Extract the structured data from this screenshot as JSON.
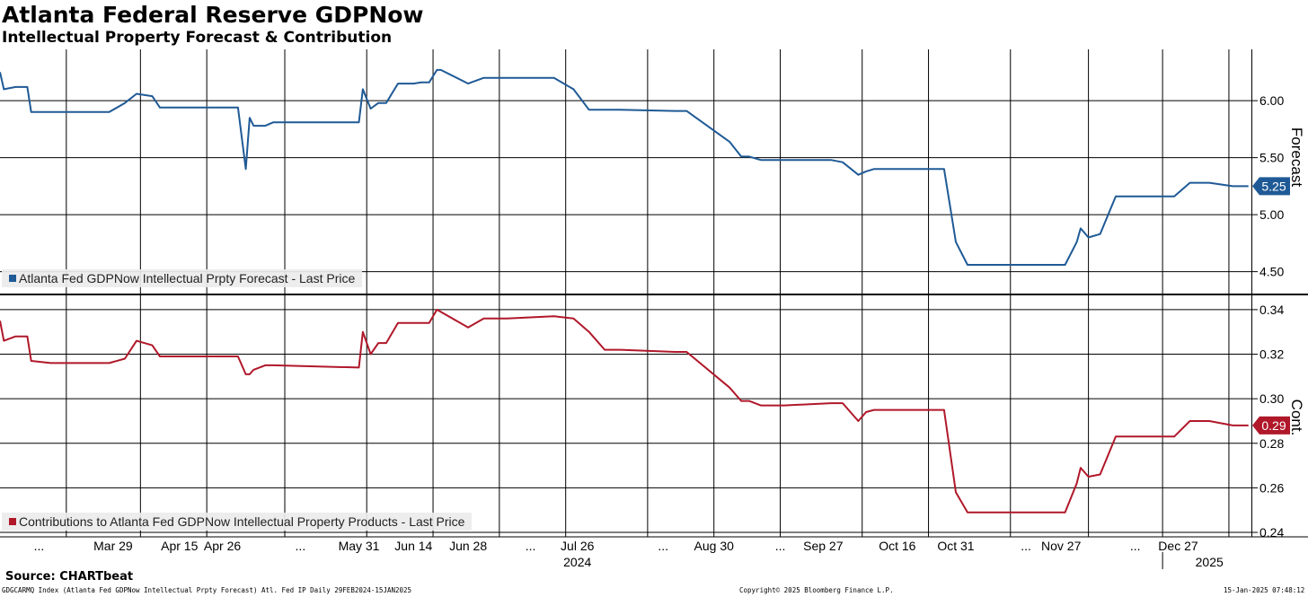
{
  "header": {
    "title": "Atlanta Federal Reserve GDPNow",
    "subtitle": "Intellectual Property Forecast & Contribution"
  },
  "footer": {
    "source": "Source: CHARTbeat",
    "ticker": "GDGCARMQ Index (Atlanta Fed GDPNow Intellectual Prpty Forecast) Atl. Fed IP  Daily 29FEB2024-15JAN2025",
    "copyright": "Copyright© 2025 Bloomberg Finance L.P.",
    "timestamp": "15-Jan-2025 07:48:12"
  },
  "colors": {
    "forecast": "#1f5a96",
    "contribution": "#b0182a",
    "grid": "#000000",
    "legend_bg": "#ebebeb"
  },
  "chart_data": [
    {
      "type": "line",
      "ylabel": "Forecast",
      "ylim": [
        4.3,
        6.45
      ],
      "yticks": [
        "4.50",
        "5.00",
        "5.50",
        "6.00"
      ],
      "ytick_values": [
        4.5,
        5.0,
        5.5,
        6.0
      ],
      "grid": true,
      "legend_position": "bottom-left",
      "last_value_label": "5.25",
      "series": [
        {
          "name": "Atlanta Fed GDPNow Intellectual Prpty Forecast - Last Price",
          "x": [
            "2024-02-29",
            "2024-03-01",
            "2024-03-04",
            "2024-03-07",
            "2024-03-08",
            "2024-03-13",
            "2024-03-28",
            "2024-04-01",
            "2024-04-04",
            "2024-04-08",
            "2024-04-10",
            "2024-04-30",
            "2024-05-02",
            "2024-05-03",
            "2024-05-04",
            "2024-05-07",
            "2024-05-09",
            "2024-05-31",
            "2024-06-01",
            "2024-06-03",
            "2024-06-05",
            "2024-06-07",
            "2024-06-10",
            "2024-06-11",
            "2024-06-14",
            "2024-06-16",
            "2024-06-18",
            "2024-06-20",
            "2024-06-21",
            "2024-06-28",
            "2024-07-02",
            "2024-07-06",
            "2024-07-08",
            "2024-07-20",
            "2024-07-25",
            "2024-07-29",
            "2024-08-02",
            "2024-08-06",
            "2024-08-20",
            "2024-08-23",
            "2024-09-03",
            "2024-09-06",
            "2024-09-08",
            "2024-09-11",
            "2024-09-17",
            "2024-09-29",
            "2024-10-02",
            "2024-10-06",
            "2024-10-08",
            "2024-10-10",
            "2024-10-14",
            "2024-10-28",
            "2024-10-31",
            "2024-11-03",
            "2024-11-13",
            "2024-11-19",
            "2024-11-28",
            "2024-12-01",
            "2024-12-02",
            "2024-12-04",
            "2024-12-07",
            "2024-12-11",
            "2024-12-14",
            "2024-12-26",
            "2024-12-30",
            "2025-01-04",
            "2025-01-10",
            "2025-01-14"
          ],
          "y": [
            6.25,
            6.1,
            6.12,
            6.12,
            5.9,
            5.9,
            5.9,
            5.98,
            6.06,
            6.04,
            5.94,
            5.94,
            5.4,
            5.85,
            5.78,
            5.78,
            5.81,
            5.81,
            6.1,
            5.93,
            5.98,
            5.98,
            6.15,
            6.15,
            6.15,
            6.16,
            6.16,
            6.27,
            6.27,
            6.15,
            6.2,
            6.2,
            6.2,
            6.2,
            6.1,
            5.92,
            5.92,
            5.92,
            5.91,
            5.91,
            5.64,
            5.51,
            5.51,
            5.48,
            5.48,
            5.48,
            5.46,
            5.35,
            5.38,
            5.4,
            5.4,
            5.4,
            4.76,
            4.56,
            4.56,
            4.56,
            4.56,
            4.76,
            4.88,
            4.8,
            4.83,
            5.16,
            5.16,
            5.16,
            5.28,
            5.28,
            5.25,
            5.25
          ]
        }
      ]
    },
    {
      "type": "line",
      "ylabel": "Cont.",
      "ylim": [
        0.238,
        0.346
      ],
      "yticks": [
        "0.24",
        "0.26",
        "0.28",
        "0.30",
        "0.32",
        "0.34"
      ],
      "ytick_values": [
        0.24,
        0.26,
        0.28,
        0.3,
        0.32,
        0.34
      ],
      "grid": true,
      "legend_position": "bottom-left",
      "last_value_label": "0.29",
      "series": [
        {
          "name": "Contributions to Atlanta Fed GDPNow Intellectual Property Products - Last Price",
          "x": [
            "2024-02-29",
            "2024-03-01",
            "2024-03-04",
            "2024-03-07",
            "2024-03-08",
            "2024-03-13",
            "2024-03-28",
            "2024-04-01",
            "2024-04-04",
            "2024-04-08",
            "2024-04-10",
            "2024-04-30",
            "2024-05-02",
            "2024-05-03",
            "2024-05-04",
            "2024-05-07",
            "2024-05-09",
            "2024-05-31",
            "2024-06-01",
            "2024-06-03",
            "2024-06-05",
            "2024-06-07",
            "2024-06-10",
            "2024-06-11",
            "2024-06-14",
            "2024-06-16",
            "2024-06-18",
            "2024-06-20",
            "2024-06-21",
            "2024-06-28",
            "2024-07-02",
            "2024-07-06",
            "2024-07-08",
            "2024-07-20",
            "2024-07-25",
            "2024-07-29",
            "2024-08-02",
            "2024-08-06",
            "2024-08-20",
            "2024-08-23",
            "2024-09-03",
            "2024-09-06",
            "2024-09-08",
            "2024-09-11",
            "2024-09-17",
            "2024-09-29",
            "2024-10-02",
            "2024-10-06",
            "2024-10-08",
            "2024-10-10",
            "2024-10-14",
            "2024-10-28",
            "2024-10-31",
            "2024-11-03",
            "2024-11-13",
            "2024-11-19",
            "2024-11-28",
            "2024-12-01",
            "2024-12-02",
            "2024-12-04",
            "2024-12-07",
            "2024-12-11",
            "2024-12-14",
            "2024-12-26",
            "2024-12-30",
            "2025-01-04",
            "2025-01-10",
            "2025-01-14"
          ],
          "y": [
            0.335,
            0.326,
            0.328,
            0.328,
            0.317,
            0.316,
            0.316,
            0.318,
            0.326,
            0.324,
            0.319,
            0.319,
            0.311,
            0.311,
            0.313,
            0.315,
            0.315,
            0.314,
            0.33,
            0.32,
            0.325,
            0.325,
            0.334,
            0.334,
            0.334,
            0.334,
            0.334,
            0.34,
            0.339,
            0.332,
            0.336,
            0.336,
            0.336,
            0.337,
            0.336,
            0.33,
            0.322,
            0.322,
            0.321,
            0.321,
            0.305,
            0.299,
            0.299,
            0.297,
            0.297,
            0.298,
            0.298,
            0.29,
            0.294,
            0.295,
            0.295,
            0.295,
            0.258,
            0.249,
            0.249,
            0.249,
            0.249,
            0.262,
            0.269,
            0.265,
            0.266,
            0.283,
            0.283,
            0.283,
            0.29,
            0.29,
            0.288,
            0.288
          ]
        }
      ]
    }
  ],
  "x_axis": {
    "start": "2024-02-29",
    "end": "2025-01-15",
    "gridlines": [
      "2024-03-17",
      "2024-04-05",
      "2024-04-22",
      "2024-05-12",
      "2024-06-02",
      "2024-06-19",
      "2024-07-06",
      "2024-07-23",
      "2024-08-13",
      "2024-08-30",
      "2024-09-16",
      "2024-10-07",
      "2024-10-24",
      "2024-11-14",
      "2024-12-04",
      "2024-12-23",
      "2025-01-09"
    ],
    "tick_labels": [
      {
        "date": "2024-03-10",
        "text": "..."
      },
      {
        "date": "2024-03-29",
        "text": "Mar 29"
      },
      {
        "date": "2024-04-15",
        "text": "Apr 15"
      },
      {
        "date": "2024-04-26",
        "text": "Apr 26"
      },
      {
        "date": "2024-05-16",
        "text": "..."
      },
      {
        "date": "2024-05-31",
        "text": "May 31"
      },
      {
        "date": "2024-06-14",
        "text": "Jun 14"
      },
      {
        "date": "2024-06-28",
        "text": "Jun 28"
      },
      {
        "date": "2024-07-14",
        "text": "..."
      },
      {
        "date": "2024-07-26",
        "text": "Jul 26"
      },
      {
        "date": "2024-08-17",
        "text": "..."
      },
      {
        "date": "2024-08-30",
        "text": "Aug 30"
      },
      {
        "date": "2024-09-16",
        "text": "..."
      },
      {
        "date": "2024-09-27",
        "text": "Sep 27"
      },
      {
        "date": "2024-10-16",
        "text": "Oct 16"
      },
      {
        "date": "2024-10-31",
        "text": "Oct 31"
      },
      {
        "date": "2024-11-18",
        "text": "..."
      },
      {
        "date": "2024-11-27",
        "text": "Nov 27"
      },
      {
        "date": "2024-12-16",
        "text": "..."
      },
      {
        "date": "2024-12-27",
        "text": "Dec 27"
      }
    ],
    "year_labels": [
      {
        "date": "2024-07-26",
        "text": "2024"
      },
      {
        "date": "2025-01-04",
        "text": "2025"
      }
    ]
  }
}
